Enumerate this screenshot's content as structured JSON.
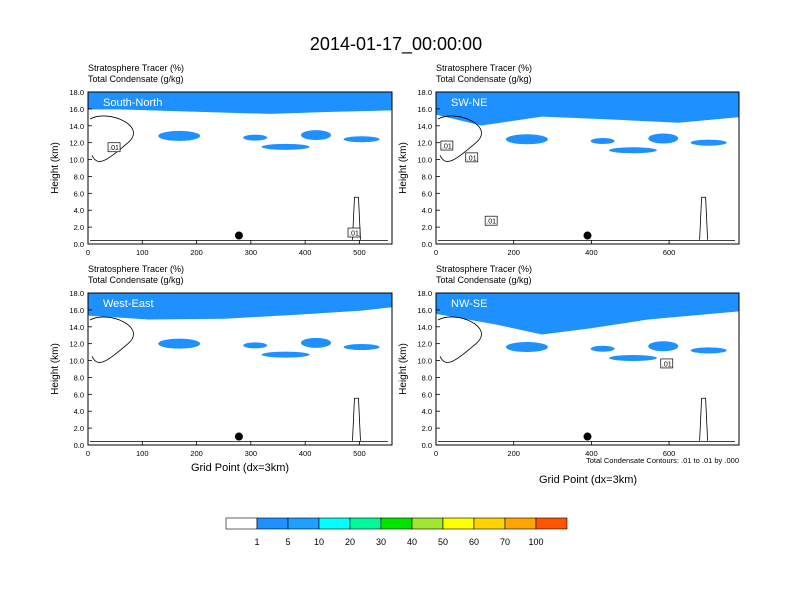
{
  "title": "2014-01-17_00:00:00",
  "panel_common": {
    "field_label": "Stratosphere Tracer",
    "field_unit": "(%)",
    "contour_label": "Total Condensate",
    "contour_unit": "(g/kg)",
    "ylabel": "Height (km)"
  },
  "xlabel": "Grid Point (dx=3km)",
  "contour_note": "Total Condensate Contours: .01 to .01 by .000",
  "colorbar": {
    "labels": [
      "1",
      "5",
      "10",
      "20",
      "30",
      "40",
      "50",
      "60",
      "70",
      "100"
    ],
    "colors": [
      "#ffffff",
      "#1e90ff",
      "#1ea0ff",
      "#00ffff",
      "#00fa9a",
      "#00e600",
      "#a0e632",
      "#ffff00",
      "#ffd200",
      "#ffa500",
      "#ff5500",
      "#ff0000"
    ]
  },
  "chart_data": [
    {
      "type": "heatmap",
      "name": "South-North",
      "xlim": [
        0,
        560
      ],
      "ylim": [
        0,
        18
      ],
      "xticks": [
        0,
        100,
        200,
        300,
        400,
        500
      ],
      "yticks": [
        0,
        2,
        4,
        6,
        8,
        10,
        12,
        14,
        16,
        18
      ],
      "marker": {
        "x": 278,
        "y": 1.0
      },
      "contour_label": ".01",
      "contour_label_points": [
        [
          48,
          11.4
        ],
        [
          490,
          1.3
        ]
      ]
    },
    {
      "type": "heatmap",
      "name": "SW-NE",
      "xlim": [
        0,
        780
      ],
      "ylim": [
        0,
        18
      ],
      "xticks": [
        0,
        200,
        400,
        600
      ],
      "yticks": [
        0,
        2,
        4,
        6,
        8,
        10,
        12,
        14,
        16,
        18
      ],
      "marker": {
        "x": 390,
        "y": 1.0
      },
      "contour_label": ".01",
      "contour_label_points": [
        [
          28,
          11.6
        ],
        [
          92,
          10.2
        ],
        [
          142,
          2.7
        ]
      ]
    },
    {
      "type": "heatmap",
      "name": "West-East",
      "xlim": [
        0,
        560
      ],
      "ylim": [
        0,
        18
      ],
      "xticks": [
        0,
        100,
        200,
        300,
        400,
        500
      ],
      "yticks": [
        0,
        2,
        4,
        6,
        8,
        10,
        12,
        14,
        16,
        18
      ],
      "marker": {
        "x": 278,
        "y": 1.0
      },
      "contour_label": "",
      "contour_label_points": []
    },
    {
      "type": "heatmap",
      "name": "NW-SE",
      "xlim": [
        0,
        780
      ],
      "ylim": [
        0,
        18
      ],
      "xticks": [
        0,
        200,
        400,
        600
      ],
      "yticks": [
        0,
        2,
        4,
        6,
        8,
        10,
        12,
        14,
        16,
        18
      ],
      "marker": {
        "x": 390,
        "y": 1.0
      },
      "contour_label": ".01",
      "contour_label_points": [
        [
          594,
          9.6
        ]
      ]
    }
  ]
}
